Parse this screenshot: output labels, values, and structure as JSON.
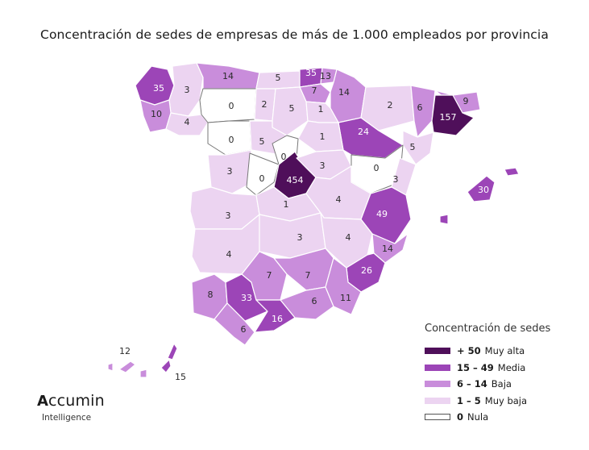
{
  "title": "Concentración de sedes de empresas de más de 1.000 empleados por provincia",
  "legend": {
    "title": "Concentración de sedes",
    "items": [
      {
        "range": "+ 50",
        "label": "Muy alta",
        "color": "#4f0f5a"
      },
      {
        "range": "15 – 49",
        "label": "Media",
        "color": "#9c45b7"
      },
      {
        "range": "6 – 14",
        "label": "Baja",
        "color": "#c98ddb"
      },
      {
        "range": "1 – 5",
        "label": "Muy baja",
        "color": "#ecd4f1"
      },
      {
        "range": "0",
        "label": "Nula",
        "color": "#ffffff"
      }
    ]
  },
  "provinces": [
    {
      "id": "a-coruna",
      "value": 35,
      "level": 1
    },
    {
      "id": "lugo",
      "value": 3,
      "level": 3
    },
    {
      "id": "asturias",
      "value": 14,
      "level": 2
    },
    {
      "id": "cantabria",
      "value": 5,
      "level": 3
    },
    {
      "id": "bizkaia",
      "value": 35,
      "level": 1
    },
    {
      "id": "gipuzkoa",
      "value": 13,
      "level": 2
    },
    {
      "id": "araba",
      "value": 7,
      "level": 2
    },
    {
      "id": "navarra",
      "value": 14,
      "level": 2
    },
    {
      "id": "huesca",
      "value": 2,
      "level": 3
    },
    {
      "id": "lleida",
      "value": 6,
      "level": 2
    },
    {
      "id": "girona",
      "value": 9,
      "level": 2
    },
    {
      "id": "barcelona",
      "value": 157,
      "level": 0
    },
    {
      "id": "pontevedra",
      "value": 10,
      "level": 2
    },
    {
      "id": "ourense",
      "value": 4,
      "level": 3
    },
    {
      "id": "leon",
      "value": 0,
      "level": 4
    },
    {
      "id": "palencia",
      "value": 2,
      "level": 3
    },
    {
      "id": "burgos",
      "value": 5,
      "level": 3
    },
    {
      "id": "la-rioja",
      "value": 1,
      "level": 3
    },
    {
      "id": "zaragoza",
      "value": 24,
      "level": 1
    },
    {
      "id": "tarragona",
      "value": 5,
      "level": 3
    },
    {
      "id": "zamora",
      "value": 0,
      "level": 4
    },
    {
      "id": "valladolid",
      "value": 5,
      "level": 3
    },
    {
      "id": "soria",
      "value": 1,
      "level": 3
    },
    {
      "id": "segovia",
      "value": 0,
      "level": 4
    },
    {
      "id": "salamanca",
      "value": 3,
      "level": 3
    },
    {
      "id": "avila",
      "value": 0,
      "level": 4
    },
    {
      "id": "madrid",
      "value": 454,
      "level": 0
    },
    {
      "id": "guadalajara",
      "value": 3,
      "level": 3
    },
    {
      "id": "teruel",
      "value": 0,
      "level": 4
    },
    {
      "id": "castellon",
      "value": 3,
      "level": 3
    },
    {
      "id": "caceres",
      "value": 3,
      "level": 3
    },
    {
      "id": "toledo",
      "value": 1,
      "level": 3
    },
    {
      "id": "cuenca",
      "value": 4,
      "level": 3
    },
    {
      "id": "valencia",
      "value": 49,
      "level": 1
    },
    {
      "id": "badajoz",
      "value": 4,
      "level": 3
    },
    {
      "id": "ciudad-real",
      "value": 3,
      "level": 3
    },
    {
      "id": "albacete",
      "value": 4,
      "level": 3
    },
    {
      "id": "alicante",
      "value": 14,
      "level": 2
    },
    {
      "id": "murcia",
      "value": 26,
      "level": 1
    },
    {
      "id": "huelva",
      "value": 8,
      "level": 2
    },
    {
      "id": "sevilla",
      "value": 33,
      "level": 1
    },
    {
      "id": "cordoba",
      "value": 7,
      "level": 2
    },
    {
      "id": "jaen",
      "value": 7,
      "level": 2
    },
    {
      "id": "granada",
      "value": 6,
      "level": 2
    },
    {
      "id": "almeria",
      "value": 11,
      "level": 2
    },
    {
      "id": "cadiz",
      "value": 6,
      "level": 2
    },
    {
      "id": "malaga",
      "value": 16,
      "level": 1
    },
    {
      "id": "baleares",
      "value": 30,
      "level": 1
    },
    {
      "id": "santa-cruz-tenerife",
      "value": 12,
      "level": 2
    },
    {
      "id": "las-palmas",
      "value": 15,
      "level": 1
    }
  ],
  "logo": {
    "name": "ccumin",
    "mark": "A",
    "subtitle": "Intelligence"
  }
}
